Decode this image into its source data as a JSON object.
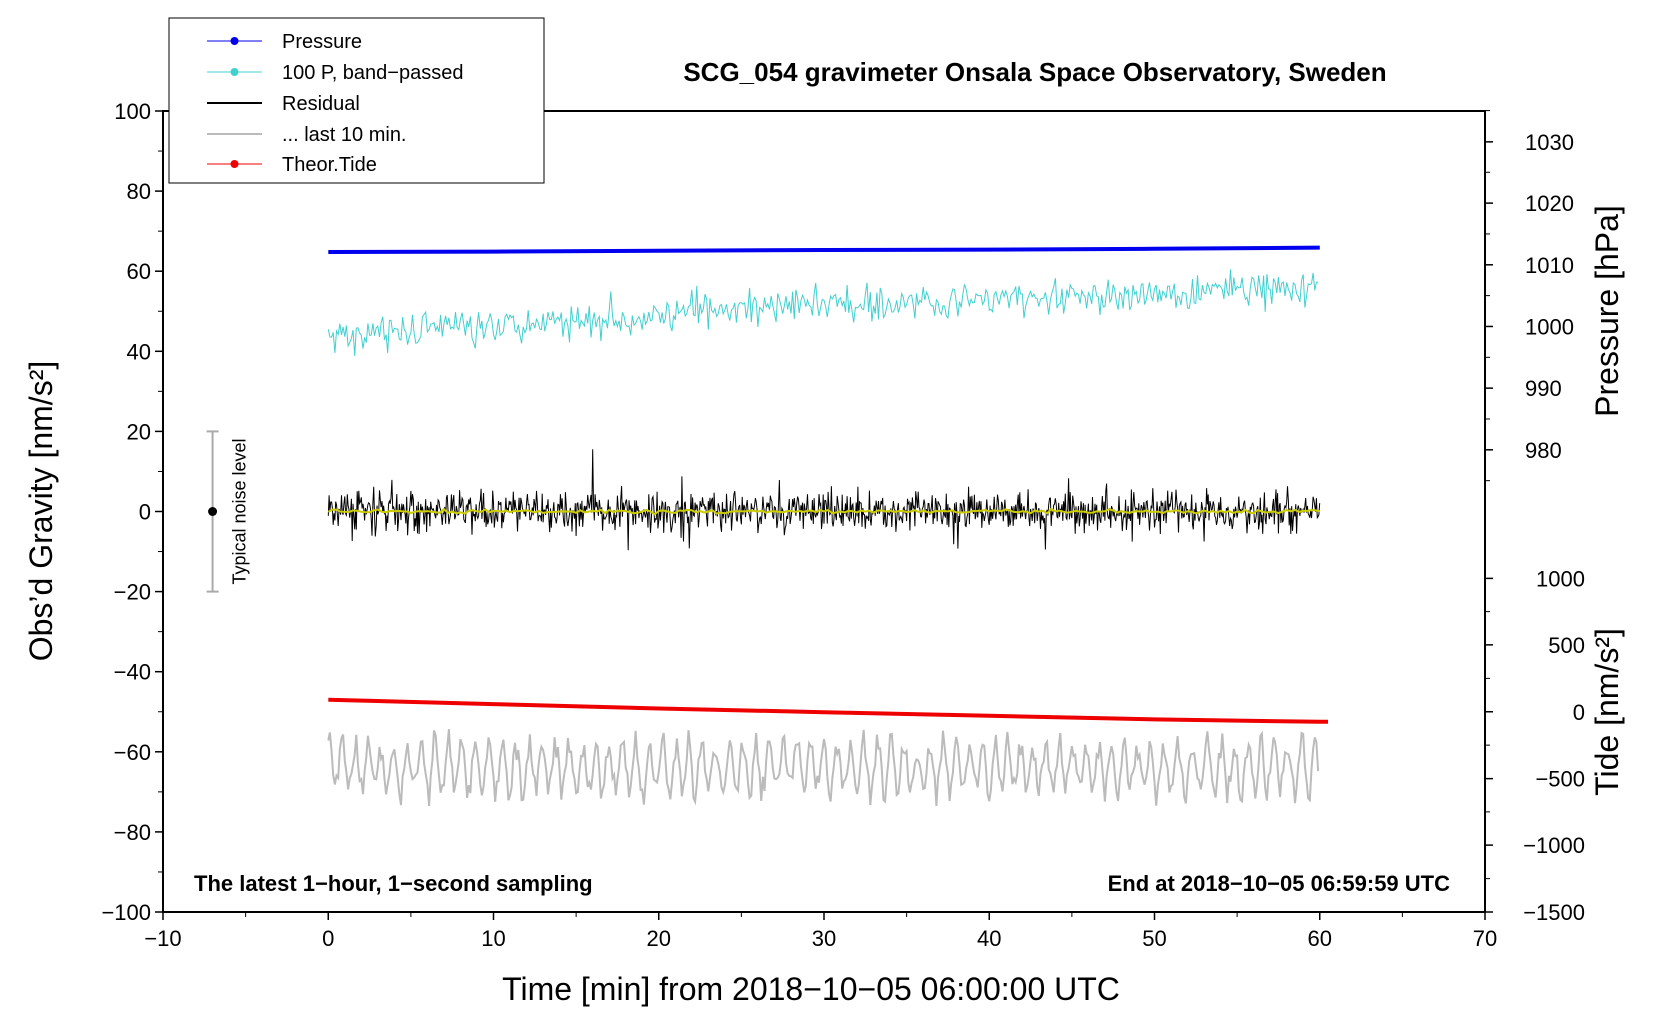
{
  "chart_data": {
    "type": "line",
    "title": "SCG_054 gravimeter Onsala Space Observatory, Sweden",
    "xlabel": "Time [min] from 2018−10−05 06:00:00 UTC",
    "ylabel_left": "Obs’d Gravity [nm/s²]",
    "ylabel_right_top": "Pressure [hPa]",
    "ylabel_right_bottom": "Tide [nm/s²]",
    "xlim": [
      -10,
      70
    ],
    "ylim": [
      -100,
      100
    ],
    "x_ticks": [
      "−10",
      "0",
      "10",
      "20",
      "30",
      "40",
      "50",
      "60",
      "70"
    ],
    "y_ticks": [
      "100",
      "80",
      "60",
      "40",
      "20",
      "0",
      "−20",
      "−40",
      "−60",
      "−80",
      "−100"
    ],
    "pressure_ticks": [
      "1030",
      "1020",
      "1010",
      "1000",
      "990",
      "980"
    ],
    "tide_ticks": [
      "1000",
      "500",
      "0",
      "−500",
      "−1000",
      "−1500"
    ],
    "pressure_axis": {
      "values": [
        1030,
        1020,
        1010,
        1000,
        990,
        980
      ],
      "y_left_equiv": [
        92.3,
        77,
        61.6,
        46.2,
        30.8,
        15.4
      ]
    },
    "tide_axis": {
      "values": [
        1000,
        500,
        0,
        -500,
        -1000,
        -1500
      ],
      "y_left_equiv": [
        -16.7,
        -33.3,
        -50,
        -66.7,
        -83.3,
        -100
      ]
    },
    "legend": [
      "Pressure",
      "100 P, band−passed",
      "Residual",
      "... last 10 min.",
      "Theor.Tide"
    ],
    "legend_position": "top-left",
    "noise_label": "Typical noise level",
    "noise_range": [
      -20,
      20
    ],
    "series": [
      {
        "name": "Pressure",
        "color": "#0000ee",
        "x": [
          0,
          10,
          20,
          30,
          40,
          50,
          60
        ],
        "values": [
          64.8,
          64.9,
          65.1,
          65.3,
          65.4,
          65.6,
          65.9
        ]
      },
      {
        "name": "100 P, band−passed",
        "color": "#40d0d0",
        "x": [
          0,
          10,
          20,
          30,
          40,
          50,
          60
        ],
        "values": [
          44,
          47,
          49,
          52,
          53,
          54,
          57
        ]
      },
      {
        "name": "Residual",
        "color": "#000000",
        "x": [
          0,
          10,
          20,
          30,
          40,
          50,
          60
        ],
        "values": [
          0,
          0,
          0,
          0,
          0,
          0,
          0
        ]
      },
      {
        "name": "... last 10 min.",
        "color": "#bbbbbb",
        "x": [
          0,
          10,
          20,
          30,
          40,
          50,
          60
        ],
        "values": [
          -64,
          -64,
          -64,
          -64,
          -64,
          -64,
          -64
        ]
      },
      {
        "name": "Theor.Tide",
        "color": "#ee0000",
        "x": [
          0,
          10,
          20,
          30,
          40,
          50,
          60,
          60.5
        ],
        "values": [
          -47,
          -48.1,
          -49.2,
          -50.1,
          -51,
          -51.9,
          -52.5,
          -52.5
        ]
      }
    ],
    "annotation_left": "The latest 1−hour, 1−second sampling",
    "annotation_right": "End at 2018−10−05 06:59:59 UTC"
  }
}
